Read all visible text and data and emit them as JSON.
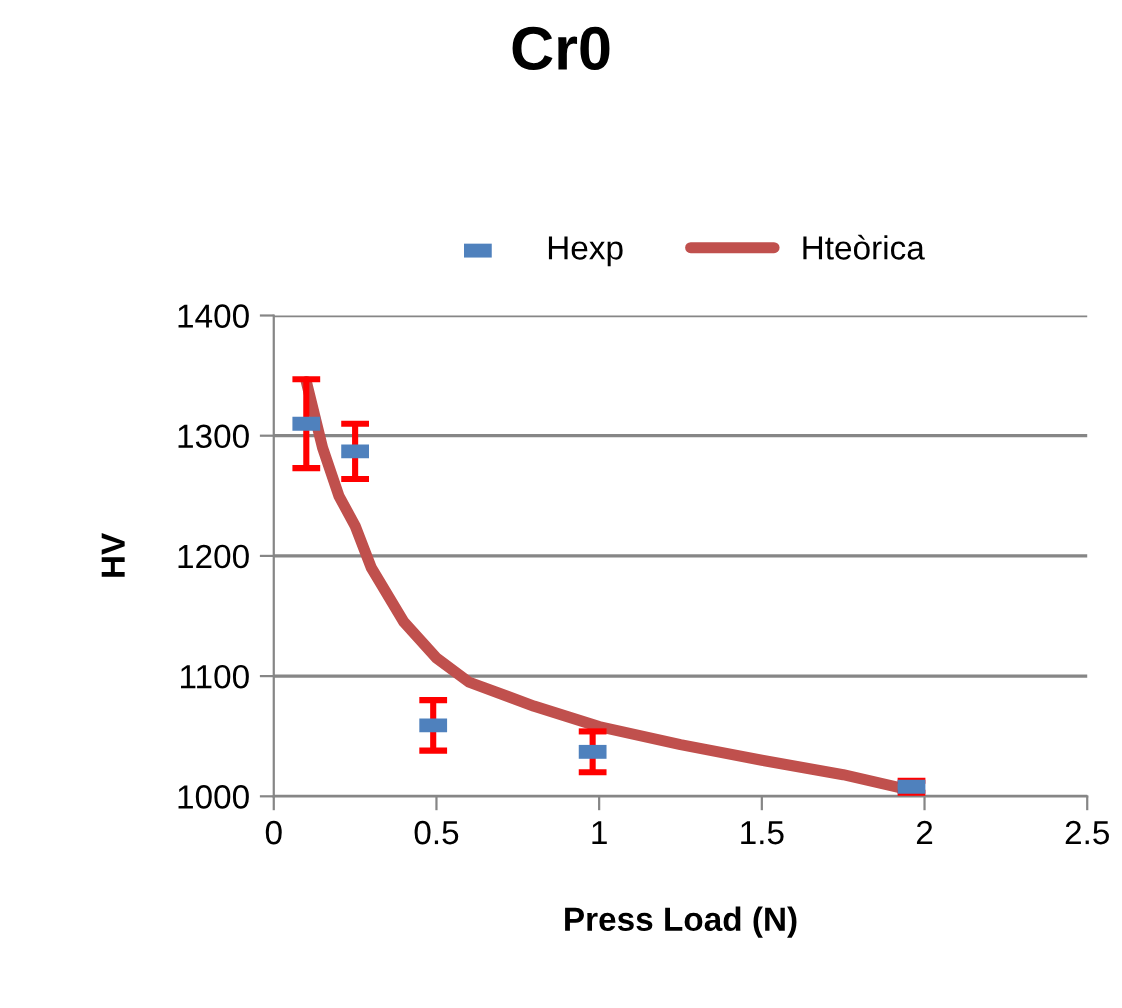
{
  "chart_data": {
    "type": "scatter",
    "title": "Cr0",
    "xlabel": "Press Load (N)",
    "ylabel": "HV",
    "xlim": [
      0,
      2.5
    ],
    "xticks": [
      0,
      0.5,
      1,
      1.5,
      2,
      2.5
    ],
    "ylim": [
      1000,
      1400
    ],
    "yticks": [
      1000,
      1100,
      1200,
      1300,
      1400
    ],
    "grid": "y",
    "legend": "top",
    "series": [
      {
        "name": "Hexp",
        "color": "#4f81bd",
        "x": [
          0.1,
          0.25,
          0.49,
          0.98,
          1.96
        ],
        "values": [
          1310,
          1287,
          1059,
          1037,
          1008
        ],
        "errors": [
          37,
          23,
          21,
          17,
          5
        ]
      },
      {
        "name": "Hteòrica",
        "type": "line",
        "color": "#c0504d",
        "x": [
          0.1,
          0.15,
          0.2,
          0.25,
          0.3,
          0.4,
          0.5,
          0.6,
          0.8,
          1.0,
          1.25,
          1.5,
          1.75,
          1.96
        ],
        "values": [
          1345,
          1290,
          1250,
          1225,
          1190,
          1145,
          1115,
          1095,
          1075,
          1058,
          1043,
          1030,
          1018,
          1005
        ]
      }
    ]
  }
}
